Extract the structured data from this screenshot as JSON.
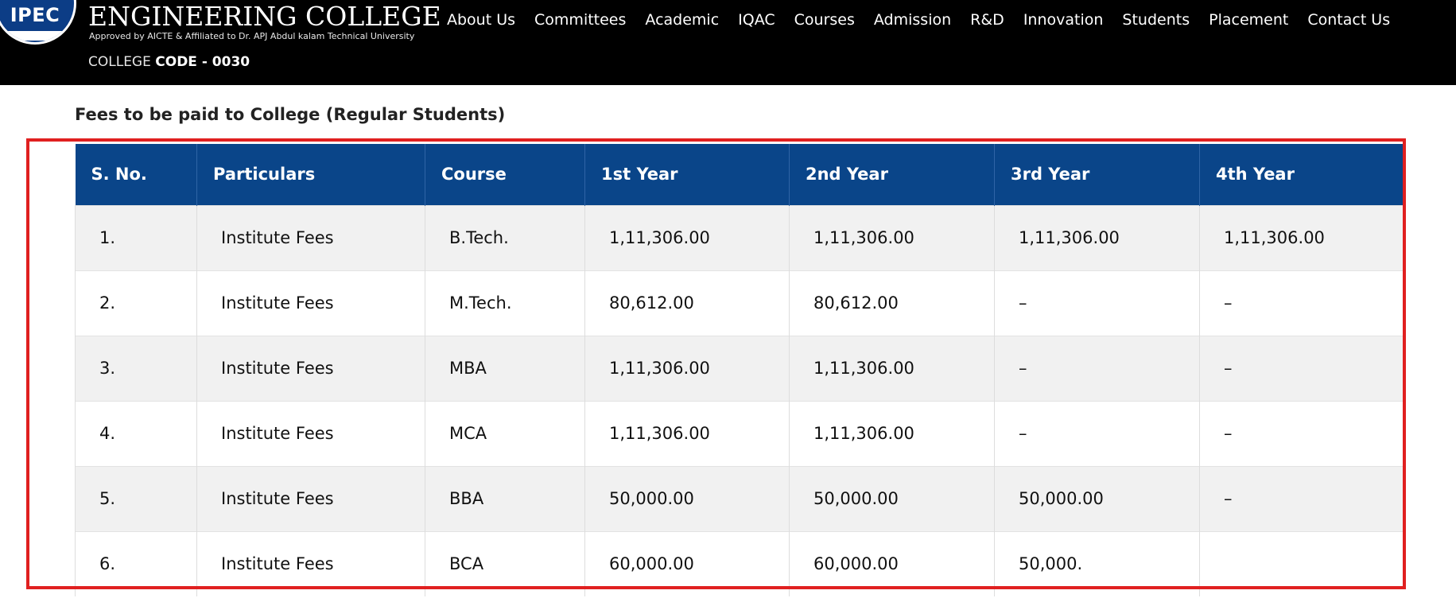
{
  "header": {
    "logo_text": "IPEC",
    "college_name": "ENGINEERING COLLEGE",
    "approval": "Approved by AICTE & Affiliated to Dr. APJ Abdul kalam Technical University",
    "code_prefix": "COLLEGE",
    "code_value": "CODE - 0030"
  },
  "nav": {
    "items": [
      {
        "label": "About Us"
      },
      {
        "label": "Committees"
      },
      {
        "label": "Academic"
      },
      {
        "label": "IQAC"
      },
      {
        "label": "Courses"
      },
      {
        "label": "Admission"
      },
      {
        "label": "R&D"
      },
      {
        "label": "Innovation"
      },
      {
        "label": "Students"
      },
      {
        "label": "Placement"
      },
      {
        "label": "Contact Us"
      }
    ]
  },
  "content": {
    "heading": "Fees to be paid to College (Regular Students)",
    "table": {
      "columns": [
        "S. No.",
        "Particulars",
        "Course",
        "1st Year",
        "2nd Year",
        "3rd Year",
        "4th Year"
      ],
      "rows": [
        [
          "1.",
          "Institute Fees",
          "B.Tech.",
          "1,11,306.00",
          "1,11,306.00",
          "1,11,306.00",
          "1,11,306.00"
        ],
        [
          "2.",
          "Institute Fees",
          "M.Tech.",
          "80,612.00",
          "80,612.00",
          "–",
          "–"
        ],
        [
          "3.",
          "Institute Fees",
          "MBA",
          "1,11,306.00",
          "1,11,306.00",
          "–",
          "–"
        ],
        [
          "4.",
          "Institute Fees",
          "MCA",
          "1,11,306.00",
          "1,11,306.00",
          "–",
          "–"
        ],
        [
          "5.",
          "Institute Fees",
          "BBA",
          "50,000.00",
          "50,000.00",
          "50,000.00",
          "–"
        ],
        [
          "6.",
          "Institute Fees",
          "BCA",
          "60,000.00",
          "60,000.00",
          "50,000.",
          ""
        ]
      ]
    }
  },
  "colors": {
    "header_bg": "#000000",
    "table_header_bg": "#0a4589",
    "highlight_border": "#e02020",
    "row_alt_bg": "#f1f1f1"
  }
}
